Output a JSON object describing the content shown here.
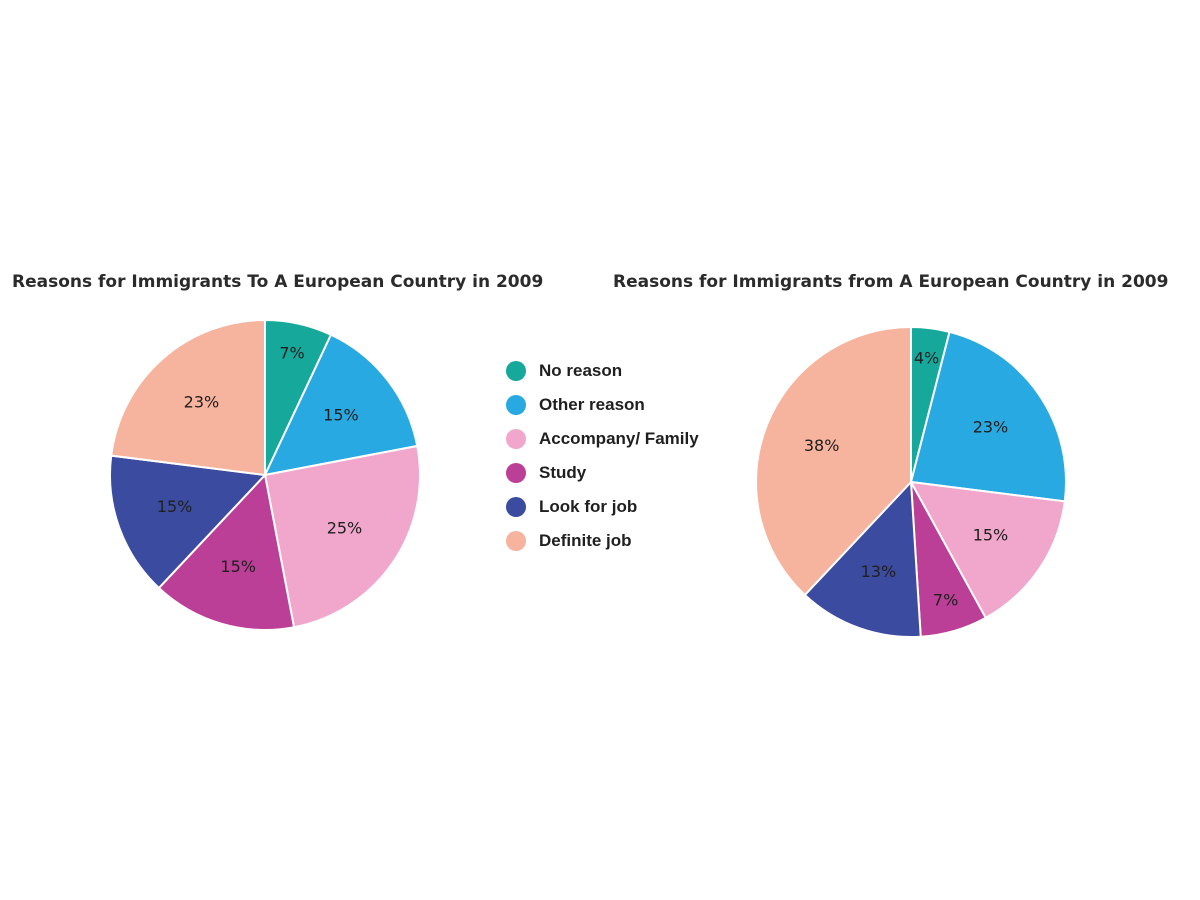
{
  "legend": [
    {
      "label": "No reason",
      "color": "#16a89b"
    },
    {
      "label": "Other reason",
      "color": "#29a9e1"
    },
    {
      "label": "Accompany/ Family",
      "color": "#f1a6cb"
    },
    {
      "label": "Study",
      "color": "#bb3e97"
    },
    {
      "label": "Look for job",
      "color": "#3b4b9f"
    },
    {
      "label": "Definite job",
      "color": "#f6b39d"
    }
  ],
  "chart_data": [
    {
      "type": "pie",
      "title": "Reasons for Immigrants To A European Country in 2009",
      "categories": [
        "No reason",
        "Other reason",
        "Accompany/ Family",
        "Study",
        "Look for job",
        "Definite job"
      ],
      "values": [
        7,
        15,
        25,
        15,
        15,
        23
      ],
      "labels": [
        "7%",
        "15%",
        "25%",
        "15%",
        "15%",
        "23%"
      ],
      "unit": "%"
    },
    {
      "type": "pie",
      "title": "Reasons for Immigrants from A European Country in 2009",
      "categories": [
        "No reason",
        "Other reason",
        "Accompany/ Family",
        "Study",
        "Look for job",
        "Definite job"
      ],
      "values": [
        4,
        23,
        15,
        7,
        13,
        38
      ],
      "labels": [
        "4%",
        "23%",
        "15%",
        "7%",
        "13%",
        "38%"
      ],
      "unit": "%"
    }
  ]
}
